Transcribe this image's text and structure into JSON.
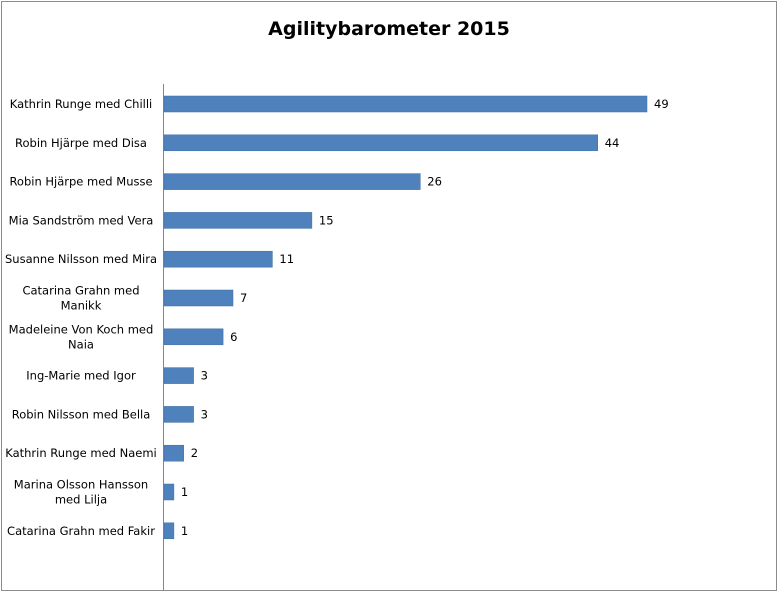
{
  "chart_data": {
    "type": "bar",
    "orientation": "horizontal",
    "title": "Agilitybarometer 2015",
    "xlabel": "",
    "ylabel": "",
    "xlim": [
      0,
      49
    ],
    "grid": false,
    "legend": "none",
    "bar_color": "#4f81bd",
    "axis_color": "#868686",
    "categories": [
      [
        "Kathrin Runge med Chilli"
      ],
      [
        "Robin Hjärpe  med Disa"
      ],
      [
        "Robin Hjärpe  med Musse"
      ],
      [
        "Mia Sandström med Vera"
      ],
      [
        "Susanne Nilsson  med Mira"
      ],
      [
        "Catarina Grahn med",
        "Manikk"
      ],
      [
        "Madeleine Von Koch med",
        "Naia"
      ],
      [
        "Ing-Marie med Igor"
      ],
      [
        "Robin Nilsson  med Bella"
      ],
      [
        "Kathrin Runge med Naemi"
      ],
      [
        "Marina Olsson Hansson",
        "med Lilja"
      ],
      [
        "Catarina Grahn med Fakir"
      ]
    ],
    "values": [
      49,
      44,
      26,
      15,
      11,
      7,
      6,
      3,
      3,
      2,
      1,
      1
    ]
  }
}
